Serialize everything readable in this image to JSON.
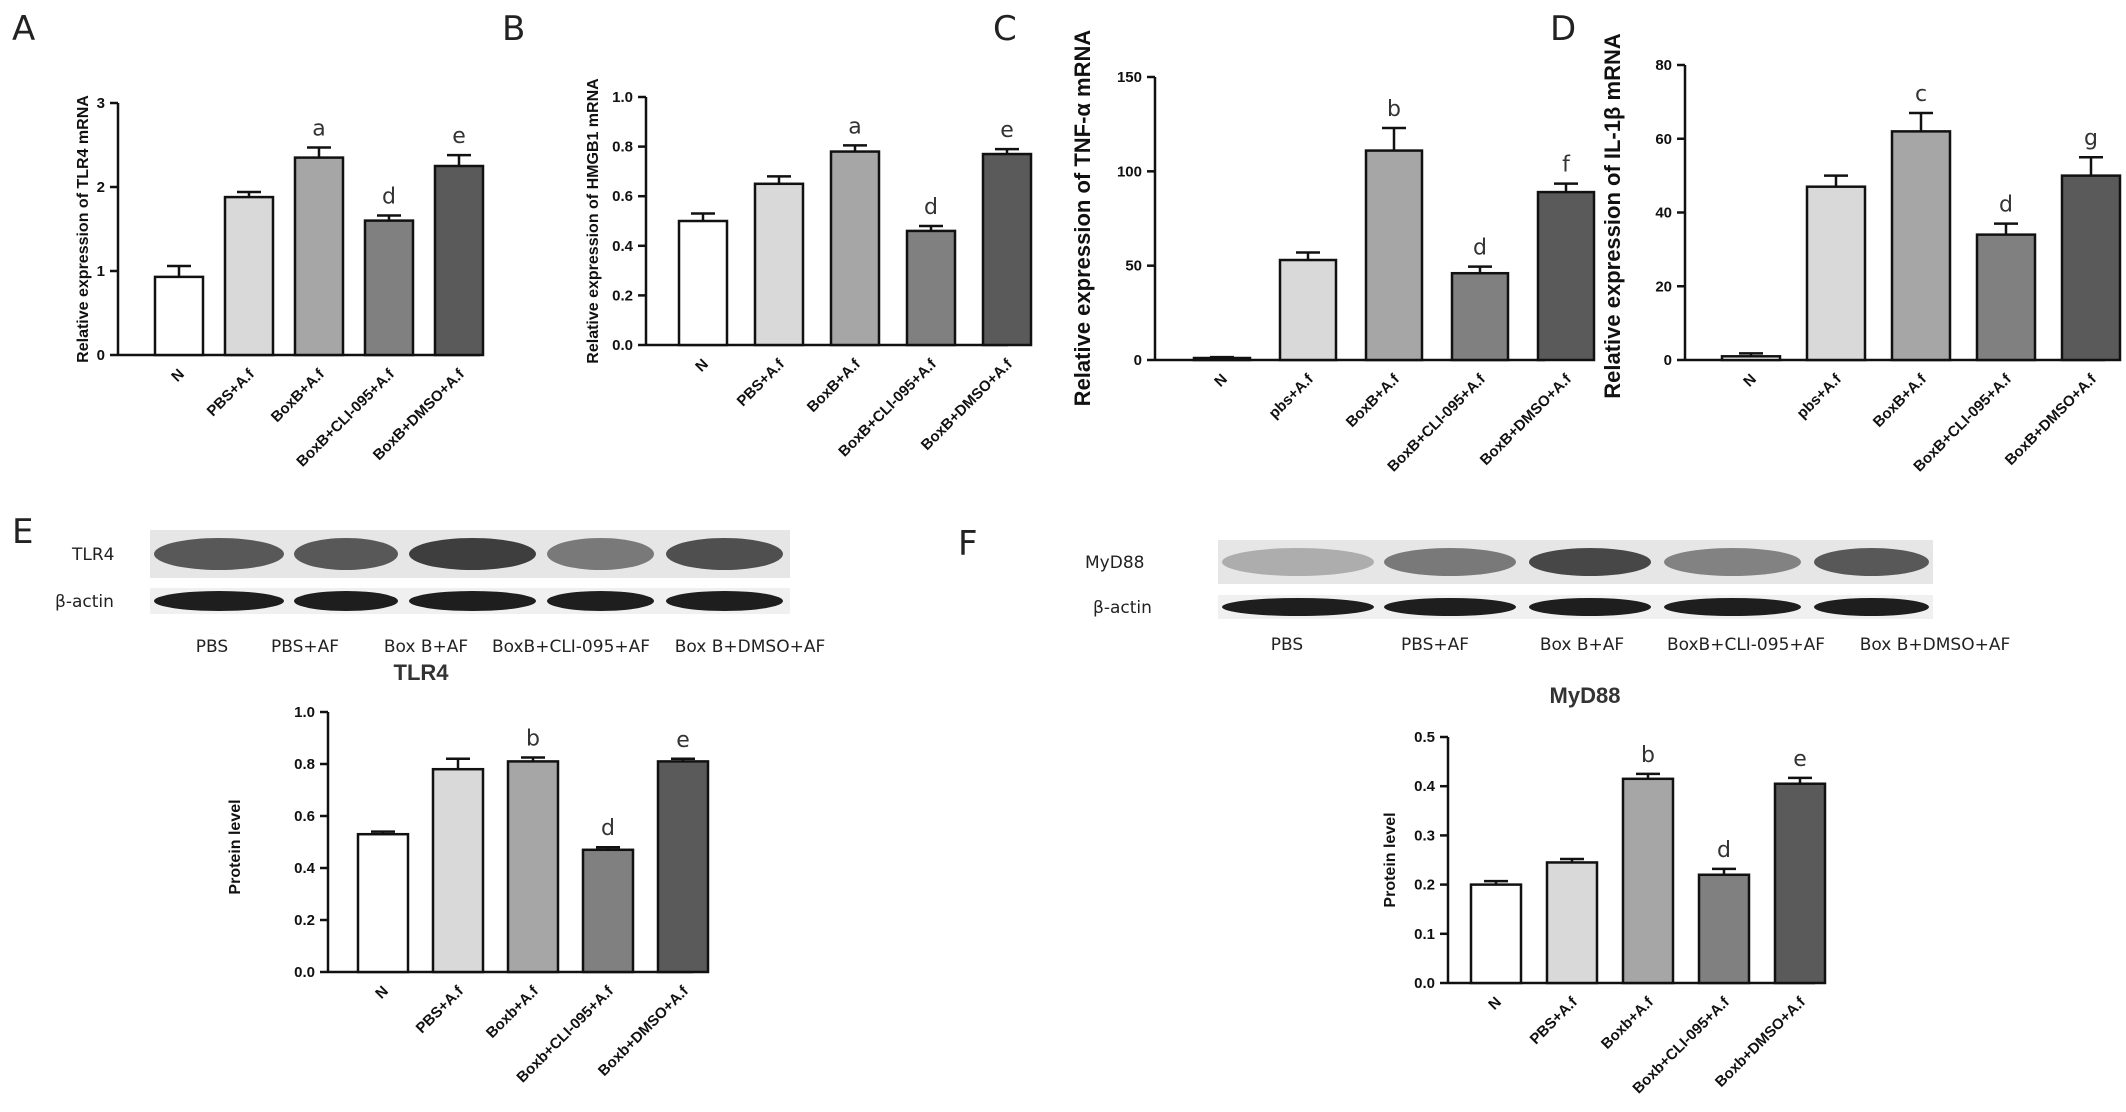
{
  "chart_data": [
    {
      "panel": "A",
      "type": "bar",
      "ylabel": "Relative expression of TLR4 mRNA",
      "ylim": [
        0,
        3
      ],
      "yticks": [
        "0",
        "1",
        "2",
        "3"
      ],
      "categories": [
        "N",
        "PBS+A.f",
        "BoxB+A.f",
        "BoxB+CLI-095+A.f",
        "BoxB+DMSO+A.f"
      ],
      "values": [
        0.93,
        1.88,
        2.35,
        1.6,
        2.25
      ],
      "errors": [
        0.13,
        0.06,
        0.12,
        0.06,
        0.13
      ],
      "annotations": [
        "",
        "",
        "a",
        "d",
        "e"
      ],
      "colors": [
        "#ffffff",
        "#d9d9d9",
        "#a6a6a6",
        "#808080",
        "#5a5a5a"
      ]
    },
    {
      "panel": "B",
      "type": "bar",
      "ylabel": "Relative expression of HMGB1 mRNA",
      "ylim": [
        0,
        1.0
      ],
      "yticks": [
        "0.0",
        "0.2",
        "0.4",
        "0.6",
        "0.8",
        "1.0"
      ],
      "categories": [
        "N",
        "PBS+A.f",
        "BoxB+A.f",
        "BoxB+CLI-095+A.f",
        "BoxB+DMSO+A.f"
      ],
      "values": [
        0.5,
        0.65,
        0.78,
        0.46,
        0.77
      ],
      "errors": [
        0.03,
        0.03,
        0.025,
        0.02,
        0.02
      ],
      "annotations": [
        "",
        "",
        "a",
        "d",
        "e"
      ],
      "colors": [
        "#ffffff",
        "#d9d9d9",
        "#a6a6a6",
        "#808080",
        "#5a5a5a"
      ]
    },
    {
      "panel": "C",
      "type": "bar",
      "ylabel": "Relative expression of TNF-α mRNA",
      "ylim": [
        0,
        150
      ],
      "yticks": [
        "0",
        "50",
        "100",
        "150"
      ],
      "categories": [
        "N",
        "pbs+A.f",
        "BoxB+A.f",
        "BoxB+CLI-095+A.f",
        "BoxB+DMSO+A.f"
      ],
      "values": [
        1,
        53,
        111,
        46,
        89
      ],
      "errors": [
        0.5,
        4,
        12,
        3.5,
        4.5
      ],
      "annotations": [
        "",
        "",
        "b",
        "d",
        "f"
      ],
      "colors": [
        "#ffffff",
        "#d9d9d9",
        "#a6a6a6",
        "#808080",
        "#5a5a5a"
      ]
    },
    {
      "panel": "D",
      "type": "bar",
      "ylabel": "Relative expression of IL-1β mRNA",
      "ylim": [
        0,
        80
      ],
      "yticks": [
        "0",
        "20",
        "40",
        "60",
        "80"
      ],
      "categories": [
        "N",
        "pbs+A.f",
        "BoxB+A.f",
        "BoxB+CLI-095+A.f",
        "BoxB+DMSO+A.f"
      ],
      "values": [
        1,
        47,
        62,
        34,
        50
      ],
      "errors": [
        0.8,
        3,
        5,
        3,
        5
      ],
      "annotations": [
        "",
        "",
        "c",
        "d",
        "g"
      ],
      "colors": [
        "#ffffff",
        "#d9d9d9",
        "#a6a6a6",
        "#808080",
        "#5a5a5a"
      ]
    },
    {
      "panel": "E",
      "type": "bar",
      "title": "TLR4",
      "ylabel": "Protein level",
      "ylim": [
        0,
        1.0
      ],
      "yticks": [
        "0.0",
        "0.2",
        "0.4",
        "0.6",
        "0.8",
        "1.0"
      ],
      "categories": [
        "N",
        "PBS+A.f",
        "Boxb+A.f",
        "Boxb+CLI-095+A.f",
        "Boxb+DMSO+A.f"
      ],
      "values": [
        0.53,
        0.78,
        0.81,
        0.47,
        0.81
      ],
      "errors": [
        0.01,
        0.04,
        0.015,
        0.01,
        0.01
      ],
      "annotations": [
        "",
        "",
        "b",
        "d",
        "e"
      ],
      "colors": [
        "#ffffff",
        "#d9d9d9",
        "#a6a6a6",
        "#808080",
        "#5a5a5a"
      ]
    },
    {
      "panel": "F",
      "type": "bar",
      "title": "MyD88",
      "ylabel": "Protein level",
      "ylim": [
        0,
        0.5
      ],
      "yticks": [
        "0.0",
        "0.1",
        "0.2",
        "0.3",
        "0.4",
        "0.5"
      ],
      "categories": [
        "N",
        "PBS+A.f",
        "Boxb+A.f",
        "Boxb+CLI-095+A.f",
        "Boxb+DMSO+A.f"
      ],
      "values": [
        0.2,
        0.245,
        0.415,
        0.22,
        0.405
      ],
      "errors": [
        0.007,
        0.007,
        0.01,
        0.012,
        0.012
      ],
      "annotations": [
        "",
        "",
        "b",
        "d",
        "e"
      ],
      "colors": [
        "#ffffff",
        "#d9d9d9",
        "#a6a6a6",
        "#808080",
        "#5a5a5a"
      ]
    }
  ],
  "blots": [
    {
      "panel": "E",
      "rows": [
        "TLR4",
        "β-actin"
      ],
      "lanes": [
        "PBS",
        "PBS+AF",
        "Box B+AF",
        "BoxB+CLI-095+AF",
        "Box B+DMSO+AF"
      ],
      "intensity": [
        0.75,
        0.75,
        0.9,
        0.55,
        0.8
      ]
    },
    {
      "panel": "F",
      "rows": [
        "MyD88",
        "β-actin"
      ],
      "lanes": [
        "PBS",
        "PBS+AF",
        "Box B+AF",
        "BoxB+CLI-095+AF",
        "Box B+DMSO+AF"
      ],
      "intensity": [
        0.25,
        0.55,
        0.85,
        0.5,
        0.75
      ]
    }
  ]
}
